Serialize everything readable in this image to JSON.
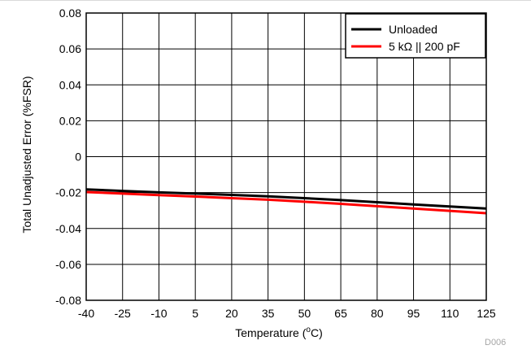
{
  "chart_data": {
    "type": "line",
    "xlabel_main": "Temperature (",
    "xlabel_sup": "o",
    "xlabel_end": "C)",
    "ylabel": "Total Unadjusted Error (%FSR)",
    "figure_code": "D006",
    "xlim": [
      -40,
      125
    ],
    "ylim": [
      -0.08,
      0.08
    ],
    "x_ticks": [
      -40,
      -25,
      -10,
      5,
      20,
      35,
      50,
      65,
      80,
      95,
      110,
      125
    ],
    "y_ticks": [
      0.08,
      0.06,
      0.04,
      0.02,
      0,
      -0.02,
      -0.04,
      -0.06,
      -0.08
    ],
    "y_tick_labels": [
      "0.08",
      "0.06",
      "0.04",
      "0.02",
      "0",
      "-0.02",
      "-0.04",
      "-0.06",
      "-0.08"
    ],
    "grid": true,
    "legend_position": "top-right",
    "series": [
      {
        "name": "Unloaded",
        "color": "#000000",
        "x": [
          -40,
          -25,
          -10,
          5,
          20,
          35,
          50,
          65,
          80,
          95,
          110,
          125
        ],
        "y": [
          -0.0182,
          -0.0191,
          -0.0199,
          -0.0206,
          -0.0213,
          -0.0221,
          -0.0231,
          -0.0242,
          -0.0254,
          -0.0266,
          -0.0278,
          -0.0289
        ]
      },
      {
        "name": "5 kΩ || 200 pF",
        "color": "#ff0000",
        "x": [
          -40,
          -25,
          -10,
          5,
          20,
          35,
          50,
          65,
          80,
          95,
          110,
          125
        ],
        "y": [
          -0.0197,
          -0.0206,
          -0.0214,
          -0.0222,
          -0.0231,
          -0.024,
          -0.0251,
          -0.0263,
          -0.0276,
          -0.0289,
          -0.0302,
          -0.0315
        ]
      }
    ]
  }
}
